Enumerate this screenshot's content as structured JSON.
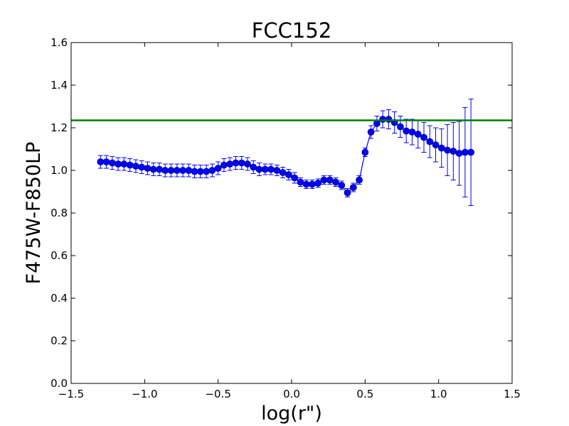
{
  "chart_data": {
    "type": "scatter",
    "title": "FCC152",
    "xlabel": "log(r\")",
    "ylabel": "F475W-F850LP",
    "xlim": [
      -1.5,
      1.5
    ],
    "ylim": [
      0.0,
      1.6
    ],
    "xticks": [
      -1.5,
      -1.0,
      -0.5,
      0.0,
      0.5,
      1.0,
      1.5
    ],
    "xtick_labels": [
      "−1.5",
      "−1.0",
      "−0.5",
      "0.0",
      "0.5",
      "1.0",
      "1.5"
    ],
    "yticks": [
      0.0,
      0.2,
      0.4,
      0.6,
      0.8,
      1.0,
      1.2,
      1.4,
      1.6
    ],
    "ytick_labels": [
      "0.0",
      "0.2",
      "0.4",
      "0.6",
      "0.8",
      "1.0",
      "1.2",
      "1.4",
      "1.6"
    ],
    "grid": false,
    "colors": {
      "series": "#0000ff",
      "reference_line": "#008000"
    },
    "reference_line": {
      "y": 1.235
    },
    "series": [
      {
        "x": [
          -1.3,
          -1.26,
          -1.22,
          -1.18,
          -1.14,
          -1.1,
          -1.06,
          -1.02,
          -0.98,
          -0.94,
          -0.9,
          -0.86,
          -0.82,
          -0.78,
          -0.74,
          -0.7,
          -0.66,
          -0.62,
          -0.58,
          -0.54,
          -0.5,
          -0.46,
          -0.42,
          -0.38,
          -0.34,
          -0.3,
          -0.26,
          -0.22,
          -0.18,
          -0.14,
          -0.1,
          -0.06,
          -0.02,
          0.02,
          0.06,
          0.1,
          0.14,
          0.18,
          0.22,
          0.26,
          0.3,
          0.34,
          0.38,
          0.42,
          0.46,
          0.5,
          0.54,
          0.58,
          0.62,
          0.66,
          0.7,
          0.74,
          0.78,
          0.82,
          0.86,
          0.9,
          0.94,
          0.98,
          1.02,
          1.06,
          1.1,
          1.14,
          1.18,
          1.22
        ],
        "y": [
          1.04,
          1.04,
          1.035,
          1.03,
          1.03,
          1.025,
          1.02,
          1.015,
          1.01,
          1.005,
          1.005,
          1.0,
          1.0,
          1.0,
          1.0,
          1.0,
          0.995,
          0.995,
          0.995,
          1.0,
          1.01,
          1.025,
          1.03,
          1.035,
          1.035,
          1.03,
          1.015,
          1.005,
          1.005,
          1.005,
          1.0,
          0.99,
          0.98,
          0.965,
          0.945,
          0.935,
          0.935,
          0.94,
          0.955,
          0.955,
          0.945,
          0.93,
          0.895,
          0.92,
          0.955,
          1.085,
          1.18,
          1.22,
          1.24,
          1.24,
          1.225,
          1.205,
          1.185,
          1.18,
          1.17,
          1.155,
          1.135,
          1.12,
          1.105,
          1.095,
          1.09,
          1.08,
          1.085,
          1.085
        ],
        "yerr": [
          0.03,
          0.03,
          0.03,
          0.03,
          0.03,
          0.03,
          0.03,
          0.03,
          0.03,
          0.03,
          0.03,
          0.03,
          0.03,
          0.03,
          0.03,
          0.03,
          0.03,
          0.03,
          0.03,
          0.03,
          0.03,
          0.03,
          0.03,
          0.03,
          0.03,
          0.03,
          0.03,
          0.03,
          0.025,
          0.025,
          0.025,
          0.025,
          0.025,
          0.025,
          0.02,
          0.02,
          0.02,
          0.02,
          0.02,
          0.02,
          0.02,
          0.02,
          0.02,
          0.02,
          0.02,
          0.02,
          0.03,
          0.035,
          0.04,
          0.045,
          0.05,
          0.05,
          0.055,
          0.06,
          0.065,
          0.07,
          0.075,
          0.08,
          0.09,
          0.12,
          0.135,
          0.15,
          0.21,
          0.25
        ]
      }
    ]
  }
}
